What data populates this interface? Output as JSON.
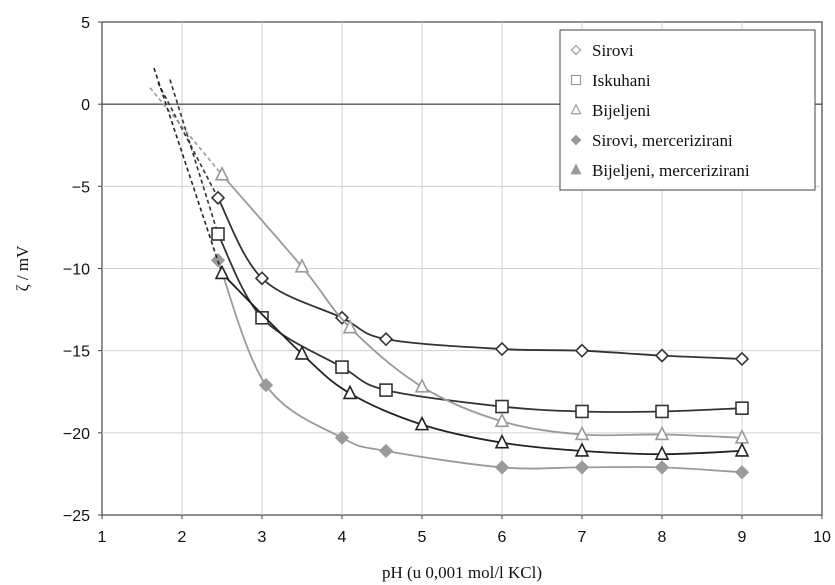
{
  "chart_data": {
    "type": "scatter",
    "xlabel": "pH (u 0,001 mol/l KCl)",
    "ylabel": "ζ / mV",
    "xlim": [
      1,
      10
    ],
    "ylim": [
      -25,
      5
    ],
    "x_ticks": [
      "1",
      "2",
      "3",
      "4",
      "5",
      "6",
      "7",
      "8",
      "9",
      "10"
    ],
    "y_ticks": [
      "5",
      "0",
      "−5",
      "−10",
      "−15",
      "−20",
      "−25"
    ],
    "grid": true,
    "legend_position": "top-right",
    "series": [
      {
        "name": "Sirovi",
        "marker": "diamond-open",
        "color": "#333333",
        "x": [
          2.45,
          3.0,
          4.0,
          4.55,
          6.0,
          7.0,
          8.0,
          9.0
        ],
        "y": [
          -5.7,
          -10.6,
          -13.0,
          -14.3,
          -14.9,
          -15.0,
          -15.3,
          -15.5
        ],
        "extrapolation": [
          [
            1.7,
            1.3
          ],
          [
            2.45,
            -5.7
          ]
        ]
      },
      {
        "name": "Iskuhani",
        "marker": "square-open",
        "color": "#333333",
        "x": [
          2.45,
          3.0,
          4.0,
          4.55,
          6.0,
          7.0,
          8.0,
          9.0
        ],
        "y": [
          -7.9,
          -13.0,
          -16.0,
          -17.4,
          -18.4,
          -18.7,
          -18.7,
          -18.5
        ],
        "extrapolation": [
          [
            1.85,
            1.5
          ],
          [
            2.45,
            -7.9
          ]
        ]
      },
      {
        "name": "Bijeljeni",
        "marker": "triangle-open",
        "color": "#9a9a9a",
        "x": [
          2.5,
          3.5,
          4.1,
          5.0,
          6.0,
          7.0,
          8.0,
          9.0
        ],
        "y": [
          -4.3,
          -9.9,
          -13.6,
          -17.2,
          -19.3,
          -20.1,
          -20.1,
          -20.3
        ],
        "extrapolation": [
          [
            1.6,
            1.0
          ],
          [
            2.5,
            -4.3
          ]
        ]
      },
      {
        "name": "Sirovi, mercerizirani",
        "marker": "diamond-filled",
        "color": "#9a9a9a",
        "x": [
          2.45,
          3.05,
          4.0,
          4.55,
          6.0,
          7.0,
          8.0,
          9.0
        ],
        "y": [
          -9.5,
          -17.1,
          -20.3,
          -21.1,
          -22.1,
          -22.1,
          -22.1,
          -22.4
        ],
        "extrapolation": []
      },
      {
        "name": "Bijeljeni, mercerizirani",
        "marker": "triangle-open",
        "color": "#222222",
        "x": [
          2.5,
          3.5,
          4.1,
          5.0,
          6.0,
          7.0,
          8.0,
          9.0
        ],
        "y": [
          -10.3,
          -15.2,
          -17.6,
          -19.5,
          -20.6,
          -21.1,
          -21.3,
          -21.1
        ],
        "extrapolation": [
          [
            1.65,
            2.2
          ],
          [
            2.5,
            -10.3
          ]
        ]
      }
    ]
  }
}
